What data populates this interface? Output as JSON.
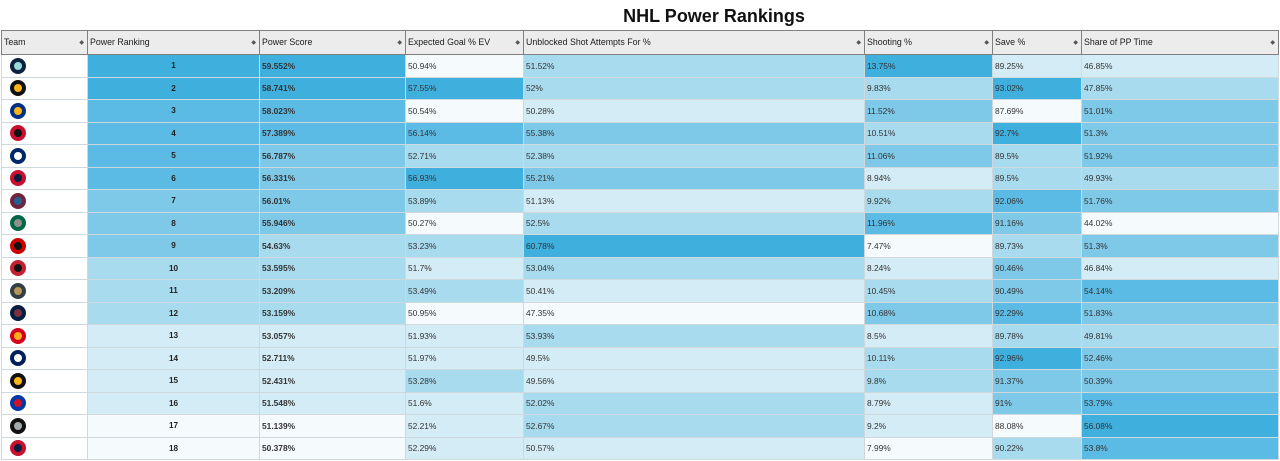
{
  "page": {
    "title": "NHL Power Rankings"
  },
  "columns": [
    {
      "key": "team",
      "label": "Team"
    },
    {
      "key": "rank",
      "label": "Power Ranking"
    },
    {
      "key": "score",
      "label": "Power Score"
    },
    {
      "key": "xg",
      "label": "Expected Goal % EV"
    },
    {
      "key": "usaf",
      "label": "Unblocked Shot Attempts For %"
    },
    {
      "key": "sh",
      "label": "Shooting %"
    },
    {
      "key": "sv",
      "label": "Save %"
    },
    {
      "key": "pp",
      "label": "Share of PP Time"
    }
  ],
  "sort_icon": "sort-arrows-icon",
  "rows": [
    {
      "team_icon": "kraken-logo-icon",
      "rank": "1",
      "score": "59.552%",
      "xg": "50.94%",
      "usaf": "51.52%",
      "sh": "13.75%",
      "sv": "89.25%",
      "pp": "46.85%"
    },
    {
      "team_icon": "bruins-logo-icon",
      "rank": "2",
      "score": "58.741%",
      "xg": "57.55%",
      "usaf": "52%",
      "sh": "9.83%",
      "sv": "93.02%",
      "pp": "47.85%"
    },
    {
      "team_icon": "sabres-logo-icon",
      "rank": "3",
      "score": "58.023%",
      "xg": "50.54%",
      "usaf": "50.28%",
      "sh": "11.52%",
      "sv": "87.69%",
      "pp": "51.01%"
    },
    {
      "team_icon": "devils-logo-icon",
      "rank": "4",
      "score": "57.389%",
      "xg": "56.14%",
      "usaf": "55.38%",
      "sh": "10.51%",
      "sv": "92.7%",
      "pp": "51.3%"
    },
    {
      "team_icon": "lightning-logo-icon",
      "rank": "5",
      "score": "56.787%",
      "xg": "52.71%",
      "usaf": "52.38%",
      "sh": "11.06%",
      "sv": "89.5%",
      "pp": "51.92%"
    },
    {
      "team_icon": "panthers-logo-icon",
      "rank": "6",
      "score": "56.331%",
      "xg": "56.93%",
      "usaf": "55.21%",
      "sh": "8.94%",
      "sv": "89.5%",
      "pp": "49.93%"
    },
    {
      "team_icon": "avalanche-logo-icon",
      "rank": "7",
      "score": "56.01%",
      "xg": "53.89%",
      "usaf": "51.13%",
      "sh": "9.92%",
      "sv": "92.06%",
      "pp": "51.76%"
    },
    {
      "team_icon": "stars-logo-icon",
      "rank": "8",
      "score": "55.946%",
      "xg": "50.27%",
      "usaf": "52.5%",
      "sh": "11.96%",
      "sv": "91.16%",
      "pp": "44.02%"
    },
    {
      "team_icon": "hurricanes-logo-icon",
      "rank": "9",
      "score": "54.63%",
      "xg": "53.23%",
      "usaf": "60.78%",
      "sh": "7.47%",
      "sv": "89.73%",
      "pp": "51.3%"
    },
    {
      "team_icon": "senators-logo-icon",
      "rank": "10",
      "score": "53.595%",
      "xg": "51.7%",
      "usaf": "53.04%",
      "sh": "8.24%",
      "sv": "90.46%",
      "pp": "46.84%"
    },
    {
      "team_icon": "golden-knights-logo-icon",
      "rank": "11",
      "score": "53.209%",
      "xg": "53.49%",
      "usaf": "50.41%",
      "sh": "10.45%",
      "sv": "90.49%",
      "pp": "54.14%"
    },
    {
      "team_icon": "jets-logo-icon",
      "rank": "12",
      "score": "53.159%",
      "xg": "50.95%",
      "usaf": "47.35%",
      "sh": "10.68%",
      "sv": "92.29%",
      "pp": "51.83%"
    },
    {
      "team_icon": "flames-logo-icon",
      "rank": "13",
      "score": "53.057%",
      "xg": "51.93%",
      "usaf": "53.93%",
      "sh": "8.5%",
      "sv": "89.78%",
      "pp": "49.81%"
    },
    {
      "team_icon": "maple-leafs-logo-icon",
      "rank": "14",
      "score": "52.711%",
      "xg": "51.97%",
      "usaf": "49.5%",
      "sh": "10.11%",
      "sv": "92.96%",
      "pp": "52.46%"
    },
    {
      "team_icon": "penguins-logo-icon",
      "rank": "15",
      "score": "52.431%",
      "xg": "53.28%",
      "usaf": "49.56%",
      "sh": "9.8%",
      "sv": "91.37%",
      "pp": "50.39%"
    },
    {
      "team_icon": "rangers-logo-icon",
      "rank": "16",
      "score": "51.548%",
      "xg": "51.6%",
      "usaf": "52.02%",
      "sh": "8.79%",
      "sv": "91%",
      "pp": "53.79%"
    },
    {
      "team_icon": "kings-logo-icon",
      "rank": "17",
      "score": "51.139%",
      "xg": "52.21%",
      "usaf": "52.67%",
      "sh": "9.2%",
      "sv": "88.08%",
      "pp": "56.08%"
    },
    {
      "team_icon": "capitals-logo-icon",
      "rank": "18",
      "score": "50.378%",
      "xg": "52.29%",
      "usaf": "50.57%",
      "sh": "7.99%",
      "sv": "90.22%",
      "pp": "53.8%"
    }
  ],
  "shading": {
    "scale": [
      "#f5fafc",
      "#d4ecf5",
      "#a9dbef",
      "#7ec8e8",
      "#5cbbe4",
      "#3fafde"
    ]
  },
  "team_colors": {
    "kraken-logo-icon": [
      "#0c2340",
      "#99d9d9"
    ],
    "bruins-logo-icon": [
      "#111111",
      "#fcb514"
    ],
    "sabres-logo-icon": [
      "#003087",
      "#fcb514"
    ],
    "devils-logo-icon": [
      "#c8102e",
      "#111111"
    ],
    "lightning-logo-icon": [
      "#002868",
      "#ffffff"
    ],
    "panthers-logo-icon": [
      "#c8102e",
      "#041e42"
    ],
    "avalanche-logo-icon": [
      "#6f263d",
      "#236192"
    ],
    "stars-logo-icon": [
      "#006847",
      "#8f8f8c"
    ],
    "hurricanes-logo-icon": [
      "#cc0000",
      "#111111"
    ],
    "senators-logo-icon": [
      "#c52032",
      "#111111"
    ],
    "golden-knights-logo-icon": [
      "#333f42",
      "#b4975a"
    ],
    "jets-logo-icon": [
      "#041e42",
      "#7b303e"
    ],
    "flames-logo-icon": [
      "#d2001c",
      "#faaf19"
    ],
    "maple-leafs-logo-icon": [
      "#00205b",
      "#ffffff"
    ],
    "penguins-logo-icon": [
      "#111111",
      "#fcb514"
    ],
    "rangers-logo-icon": [
      "#0038a8",
      "#ce1126"
    ],
    "kings-logo-icon": [
      "#111111",
      "#a2aaad"
    ],
    "capitals-logo-icon": [
      "#c8102e",
      "#041e42"
    ]
  }
}
